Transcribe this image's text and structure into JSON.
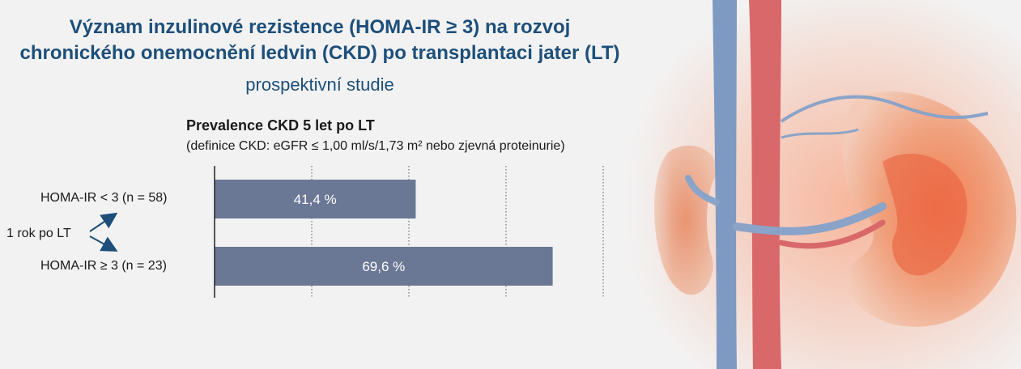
{
  "title_line1": "Význam inzulinové rezistence (HOMA-IR ≥ 3) na rozvoj",
  "title_line2": "chronického onemocnění ledvin (CKD) po transplantaci jater (LT)",
  "subtitle": "prospektivní studie",
  "colors": {
    "bar": "#6a7795",
    "title": "#1d4f7a",
    "bar_text": "#ffffff"
  },
  "chart_data": {
    "type": "bar",
    "orientation": "horizontal",
    "title": "Prevalence CKD 5 let po LT",
    "note": "(definice CKD: eGFR ≤ 1,00 ml/s/1,73 m² nebo zjevná proteinurie)",
    "categories": [
      "HOMA-IR < 3 (n = 58)",
      "HOMA-IR ≥ 3 (n = 23)"
    ],
    "values": [
      41.4,
      69.6
    ],
    "value_labels": [
      "41,4 %",
      "69,6 %"
    ],
    "xlim": [
      0,
      100
    ],
    "gridlines": [
      20,
      40,
      60,
      80
    ],
    "grid": true,
    "group_label": "1 rok po LT"
  }
}
